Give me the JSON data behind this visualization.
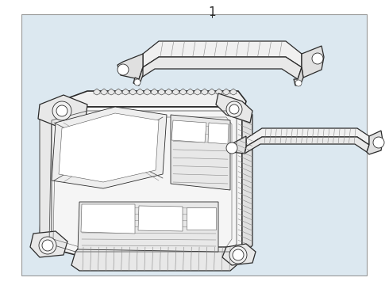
{
  "bg_color": "#ffffff",
  "inner_bg": "#dce8f0",
  "border_color": "#aaaaaa",
  "line_color": "#2a2a2a",
  "light_line_color": "#888888",
  "mid_line_color": "#555555",
  "label_number": "1",
  "fig_bg": "#ffffff"
}
